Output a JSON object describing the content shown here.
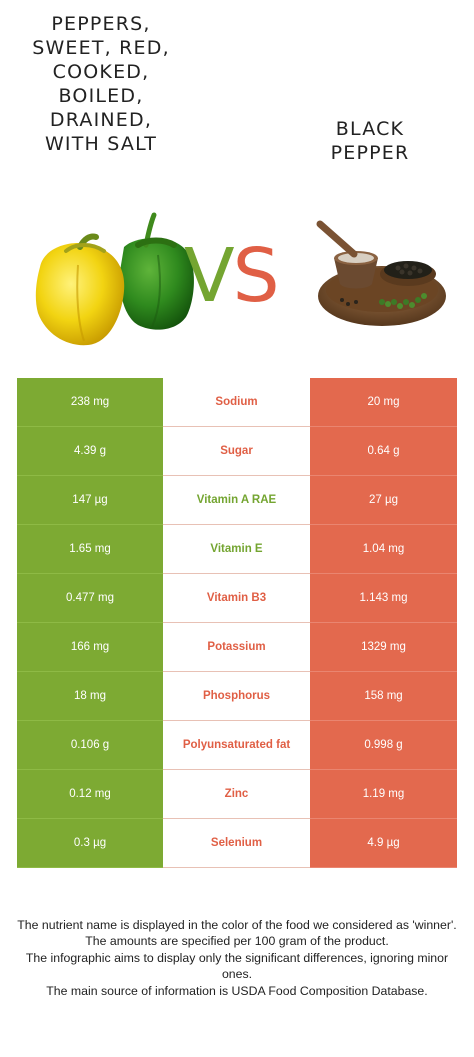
{
  "left_food": {
    "title": "PEPPERS,\nSWEET, RED,\nCOOKED,\nBOILED,\nDRAINED,\nWITH SALT",
    "image_icon": "bell-peppers-image",
    "color": "#7daa33"
  },
  "right_food": {
    "title": "BLACK\nPEPPER",
    "image_icon": "black-pepper-mortar-image",
    "color": "#e3694e"
  },
  "vs": {
    "v": "V",
    "s": "S"
  },
  "nutrients": [
    {
      "name": "Sodium",
      "left": "238 mg",
      "right": "20 mg",
      "winner_color": "#e05f45"
    },
    {
      "name": "Sugar",
      "left": "4.39 g",
      "right": "0.64 g",
      "winner_color": "#e05f45"
    },
    {
      "name": "Vitamin A RAE",
      "left": "147 µg",
      "right": "27 µg",
      "winner_color": "#74a531"
    },
    {
      "name": "Vitamin E",
      "left": "1.65 mg",
      "right": "1.04 mg",
      "winner_color": "#74a531"
    },
    {
      "name": "Vitamin B3",
      "left": "0.477 mg",
      "right": "1.143 mg",
      "winner_color": "#e05f45"
    },
    {
      "name": "Potassium",
      "left": "166 mg",
      "right": "1329 mg",
      "winner_color": "#e05f45"
    },
    {
      "name": "Phosphorus",
      "left": "18 mg",
      "right": "158 mg",
      "winner_color": "#e05f45"
    },
    {
      "name": "Polyunsaturated fat",
      "left": "0.106 g",
      "right": "0.998 g",
      "winner_color": "#e05f45"
    },
    {
      "name": "Zinc",
      "left": "0.12 mg",
      "right": "1.19 mg",
      "winner_color": "#e05f45"
    },
    {
      "name": "Selenium",
      "left": "0.3 µg",
      "right": "4.9 µg",
      "winner_color": "#e05f45"
    }
  ],
  "footer": [
    "The nutrient name is displayed in the color of the food we considered as 'winner'.",
    "The amounts are specified per 100 gram of the product.",
    "The infographic aims to display only the significant differences, ignoring minor ones.",
    "The main source of information is USDA Food Composition Database."
  ]
}
